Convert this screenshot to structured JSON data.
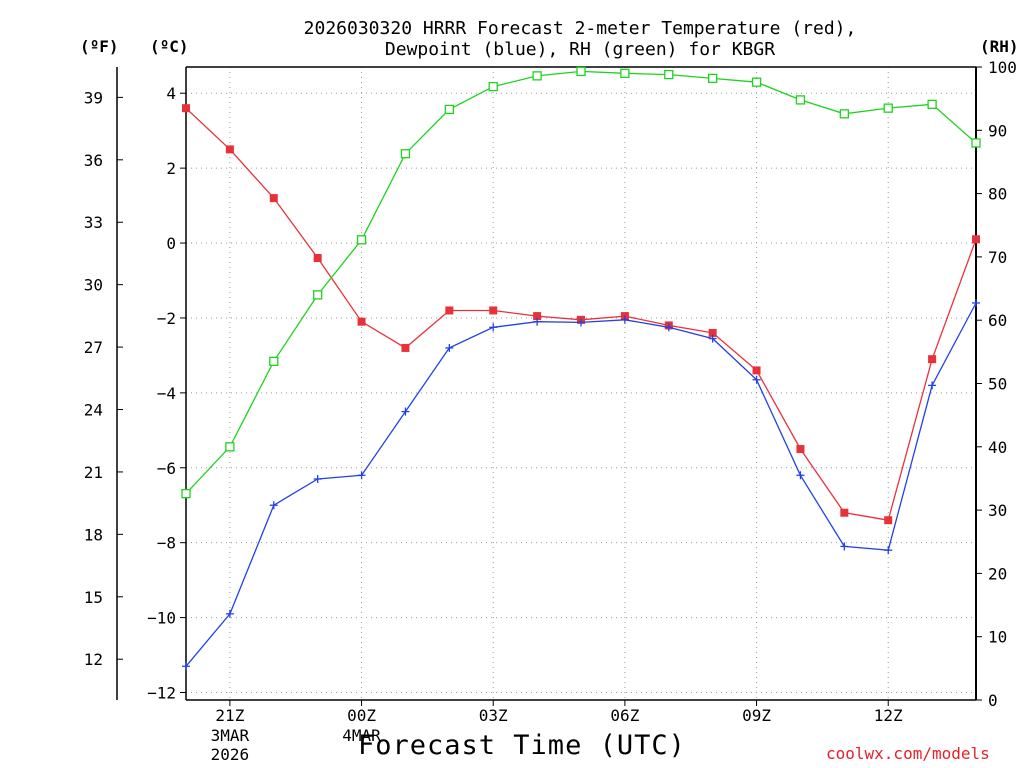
{
  "chart_data": {
    "type": "line",
    "title_line1": "2026030320 HRRR Forecast 2-meter Temperature (red),",
    "title_line2": "Dewpoint (blue), RH (green) for KBGR",
    "xlabel": "Forecast Time (UTC)",
    "unit_f": "(ºF)",
    "unit_c": "(ºC)",
    "unit_rh": "(RH)",
    "credit": "coolwx.com/models",
    "x_hours": [
      20,
      21,
      22,
      23,
      24,
      25,
      26,
      27,
      28,
      29,
      30,
      31,
      32,
      33,
      34,
      35,
      36,
      37,
      38
    ],
    "xlim": [
      20,
      38
    ],
    "x_ticks": [
      {
        "hour": 21,
        "label": "21Z",
        "sub1": "3MAR",
        "sub2": "2026"
      },
      {
        "hour": 24,
        "label": "00Z",
        "sub1": "4MAR",
        "sub2": ""
      },
      {
        "hour": 27,
        "label": "03Z",
        "sub1": "",
        "sub2": ""
      },
      {
        "hour": 30,
        "label": "06Z",
        "sub1": "",
        "sub2": ""
      },
      {
        "hour": 33,
        "label": "09Z",
        "sub1": "",
        "sub2": ""
      },
      {
        "hour": 36,
        "label": "12Z",
        "sub1": "",
        "sub2": ""
      }
    ],
    "ylim_c": [
      -12.2,
      4.7
    ],
    "y_ticks_c": [
      4,
      2,
      0,
      -2,
      -4,
      -6,
      -8,
      -10,
      -12
    ],
    "y_ticks_c_labels": [
      "4",
      "2",
      "0",
      "−2",
      "−4",
      "−6",
      "−8",
      "−10",
      "−12"
    ],
    "y_ticks_f": [
      39,
      36,
      33,
      30,
      27,
      24,
      21,
      18,
      15,
      12
    ],
    "ylim_rh": [
      0,
      100
    ],
    "y_ticks_rh": [
      0,
      10,
      20,
      30,
      40,
      50,
      60,
      70,
      80,
      90,
      100
    ],
    "grid": true,
    "series": [
      {
        "name": "Temperature",
        "unit": "C",
        "color": "#e8323a",
        "marker": "filled-square",
        "values": [
          3.6,
          2.5,
          1.2,
          -0.4,
          -2.1,
          -2.8,
          -1.8,
          -1.8,
          -1.95,
          -2.05,
          -1.95,
          -2.2,
          -2.4,
          -3.4,
          -5.5,
          -7.2,
          -7.4,
          -3.1,
          0.1
        ]
      },
      {
        "name": "Dewpoint",
        "unit": "C",
        "color": "#2342e6",
        "marker": "plus",
        "values": [
          -11.3,
          -9.9,
          -7.0,
          -6.3,
          -6.2,
          -4.5,
          -2.8,
          -2.25,
          -2.1,
          -2.12,
          -2.05,
          -2.25,
          -2.55,
          -3.65,
          -6.2,
          -8.1,
          -8.2,
          -3.8,
          -1.6
        ]
      },
      {
        "name": "RH",
        "unit": "%",
        "color": "#1ed31e",
        "marker": "open-square",
        "values": [
          32.6,
          40.0,
          53.5,
          64.0,
          72.7,
          86.3,
          93.3,
          96.9,
          98.6,
          99.3,
          99.0,
          98.8,
          98.2,
          97.6,
          94.8,
          92.6,
          93.5,
          94.1,
          88.0
        ]
      }
    ]
  }
}
